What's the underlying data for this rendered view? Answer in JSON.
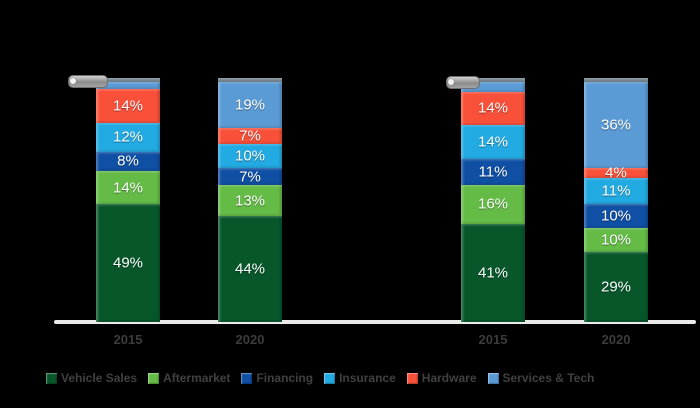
{
  "background_color": "#000000",
  "axis_line_color": "#eaeaea",
  "chart_data": {
    "type": "bar",
    "subtype": "stacked-100-percent",
    "title": "",
    "xlabel": "",
    "ylabel": "",
    "unit": "%",
    "ylim": [
      0,
      100
    ],
    "grid": false,
    "legend_position": "bottom",
    "categories": [
      "2015",
      "2020",
      "2015",
      "2020"
    ],
    "series": [
      {
        "name": "Vehicle Sales",
        "color": "#07572b",
        "values": [
          49,
          44,
          41,
          29
        ],
        "labels": [
          "49%",
          "44%",
          "41%",
          "29%"
        ]
      },
      {
        "name": "Aftermarket",
        "color": "#64bc47",
        "values": [
          14,
          13,
          16,
          10
        ],
        "labels": [
          "14%",
          "13%",
          "16%",
          "10%"
        ]
      },
      {
        "name": "Financing",
        "color": "#0f4fa4",
        "values": [
          8,
          7,
          11,
          10
        ],
        "labels": [
          "8%",
          "7%",
          "11%",
          "10%"
        ]
      },
      {
        "name": "Insurance",
        "color": "#22aae2",
        "values": [
          12,
          10,
          14,
          11
        ],
        "labels": [
          "12%",
          "10%",
          "14%",
          "11%"
        ]
      },
      {
        "name": "Hardware",
        "color": "#f9503a",
        "values": [
          14,
          7,
          14,
          4
        ],
        "labels": [
          "14%",
          "7%",
          "14%",
          "4%"
        ]
      },
      {
        "name": "Services & Tech",
        "color": "#5b9bd5",
        "values": [
          3,
          19,
          4,
          36
        ],
        "labels": [
          "",
          "19%",
          "",
          "36%"
        ]
      }
    ],
    "legend": [
      {
        "label": "Vehicle Sales",
        "color": "#07572b"
      },
      {
        "label": "Aftermarket",
        "color": "#64bc47"
      },
      {
        "label": "Financing",
        "color": "#0f4fa4"
      },
      {
        "label": "Insurance",
        "color": "#22aae2"
      },
      {
        "label": "Hardware",
        "color": "#f9503a"
      },
      {
        "label": "Services & Tech",
        "color": "#5b9bd5"
      }
    ],
    "annotations": [
      {
        "type": "callout-arrow",
        "color": "#9a9a9a",
        "points_to": "2015 bar 1 top sliver (Services & Tech 3%)"
      },
      {
        "type": "callout-arrow",
        "color": "#9a9a9a",
        "points_to": "2015 bar 3 top sliver (Services & Tech 4%)"
      }
    ]
  }
}
